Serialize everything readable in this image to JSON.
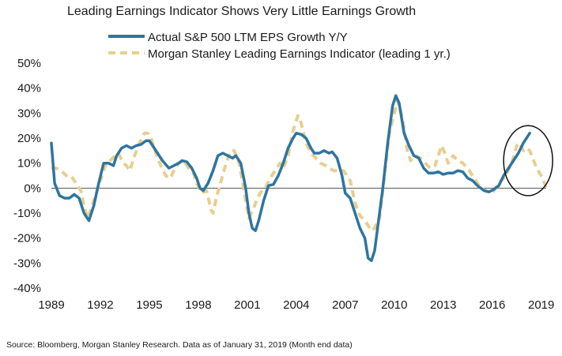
{
  "chart_data": {
    "type": "line",
    "title": "Leading Earnings Indicator Shows Very Little Earnings Growth",
    "xlabel": "",
    "ylabel": "",
    "x_ticks": [
      "1989",
      "1992",
      "1995",
      "1998",
      "2001",
      "2004",
      "2007",
      "2010",
      "2013",
      "2016",
      "2019"
    ],
    "y_ticks": [
      "50%",
      "40%",
      "30%",
      "20%",
      "10%",
      "0%",
      "-10%",
      "-20%",
      "-30%",
      "-40%"
    ],
    "xlim": [
      1989,
      2019.5
    ],
    "ylim": [
      -40,
      50
    ],
    "legend_position": "top",
    "grid": false,
    "zero_line": true,
    "highlight_ellipse": {
      "x_center": 2018.2,
      "y_center": 11,
      "x_radius": 1.5,
      "y_radius": 14
    },
    "series": [
      {
        "name": "Actual S&P 500 LTM EPS Growth Y/Y",
        "color": "#2e75a0",
        "style": "solid",
        "points": [
          [
            1989.0,
            18
          ],
          [
            1989.2,
            2
          ],
          [
            1989.5,
            -3
          ],
          [
            1989.8,
            -4
          ],
          [
            1990.1,
            -4
          ],
          [
            1990.4,
            -2.5
          ],
          [
            1990.7,
            -4
          ],
          [
            1991.0,
            -10
          ],
          [
            1991.3,
            -13
          ],
          [
            1991.6,
            -7
          ],
          [
            1991.9,
            2
          ],
          [
            1992.2,
            10
          ],
          [
            1992.5,
            10
          ],
          [
            1992.8,
            9
          ],
          [
            1993.0,
            13
          ],
          [
            1993.3,
            16
          ],
          [
            1993.6,
            17
          ],
          [
            1993.9,
            16
          ],
          [
            1994.2,
            17
          ],
          [
            1994.5,
            17.5
          ],
          [
            1994.8,
            19
          ],
          [
            1995.0,
            19
          ],
          [
            1995.2,
            17
          ],
          [
            1995.5,
            14
          ],
          [
            1995.8,
            11
          ],
          [
            1996.2,
            8
          ],
          [
            1996.5,
            9
          ],
          [
            1996.8,
            10
          ],
          [
            1997.0,
            11
          ],
          [
            1997.3,
            10.5
          ],
          [
            1997.6,
            8
          ],
          [
            1997.9,
            4
          ],
          [
            1998.1,
            0
          ],
          [
            1998.3,
            -1
          ],
          [
            1998.6,
            2
          ],
          [
            1998.9,
            7
          ],
          [
            1999.2,
            13
          ],
          [
            1999.5,
            14
          ],
          [
            1999.8,
            13
          ],
          [
            2000.1,
            12
          ],
          [
            2000.3,
            13
          ],
          [
            2000.6,
            10
          ],
          [
            2000.9,
            0
          ],
          [
            2001.1,
            -10
          ],
          [
            2001.3,
            -16
          ],
          [
            2001.5,
            -17
          ],
          [
            2001.7,
            -13
          ],
          [
            2002.0,
            -5
          ],
          [
            2002.3,
            1
          ],
          [
            2002.6,
            1.5
          ],
          [
            2002.9,
            5
          ],
          [
            2003.2,
            10
          ],
          [
            2003.5,
            16
          ],
          [
            2003.8,
            20
          ],
          [
            2004.0,
            22
          ],
          [
            2004.3,
            21.5
          ],
          [
            2004.6,
            20
          ],
          [
            2004.9,
            16
          ],
          [
            2005.1,
            14
          ],
          [
            2005.4,
            14
          ],
          [
            2005.7,
            15
          ],
          [
            2006.0,
            14
          ],
          [
            2006.2,
            14.5
          ],
          [
            2006.5,
            12
          ],
          [
            2006.8,
            5
          ],
          [
            2007.0,
            -2
          ],
          [
            2007.3,
            -4
          ],
          [
            2007.6,
            -10
          ],
          [
            2007.9,
            -16
          ],
          [
            2008.2,
            -20
          ],
          [
            2008.4,
            -28
          ],
          [
            2008.6,
            -29
          ],
          [
            2008.8,
            -25
          ],
          [
            2009.0,
            -15
          ],
          [
            2009.3,
            0
          ],
          [
            2009.6,
            18
          ],
          [
            2009.9,
            33
          ],
          [
            2010.1,
            37
          ],
          [
            2010.3,
            34
          ],
          [
            2010.6,
            22
          ],
          [
            2010.9,
            17
          ],
          [
            2011.2,
            13
          ],
          [
            2011.5,
            12
          ],
          [
            2011.8,
            8
          ],
          [
            2012.1,
            6
          ],
          [
            2012.4,
            6
          ],
          [
            2012.7,
            6.5
          ],
          [
            2013.0,
            5.5
          ],
          [
            2013.3,
            6
          ],
          [
            2013.6,
            6
          ],
          [
            2013.9,
            7
          ],
          [
            2014.2,
            6.5
          ],
          [
            2014.5,
            4
          ],
          [
            2014.8,
            3
          ],
          [
            2015.1,
            1
          ],
          [
            2015.5,
            -1
          ],
          [
            2015.8,
            -1.5
          ],
          [
            2016.1,
            -0.5
          ],
          [
            2016.4,
            1
          ],
          [
            2016.7,
            5
          ],
          [
            2017.0,
            8
          ],
          [
            2017.3,
            11
          ],
          [
            2017.6,
            14
          ],
          [
            2017.9,
            18
          ],
          [
            2018.1,
            20
          ],
          [
            2018.3,
            22
          ]
        ]
      },
      {
        "name": "Morgan Stanley Leading Earnings Indicator (leading 1 yr.)",
        "color": "#e6cf8f",
        "style": "dashed",
        "points": [
          [
            1989.0,
            8
          ],
          [
            1989.3,
            8
          ],
          [
            1989.6,
            7
          ],
          [
            1989.9,
            5
          ],
          [
            1990.2,
            5
          ],
          [
            1990.5,
            2
          ],
          [
            1990.8,
            -1
          ],
          [
            1991.0,
            -7
          ],
          [
            1991.2,
            -12
          ],
          [
            1991.4,
            -9
          ],
          [
            1991.7,
            -3
          ],
          [
            1992.0,
            3
          ],
          [
            1992.3,
            9
          ],
          [
            1992.6,
            11
          ],
          [
            1992.9,
            13
          ],
          [
            1993.1,
            14
          ],
          [
            1993.4,
            10
          ],
          [
            1993.6,
            9
          ],
          [
            1993.8,
            7
          ],
          [
            1994.1,
            13
          ],
          [
            1994.4,
            18
          ],
          [
            1994.7,
            22
          ],
          [
            1994.9,
            22
          ],
          [
            1995.1,
            20
          ],
          [
            1995.4,
            14
          ],
          [
            1995.7,
            9
          ],
          [
            1996.0,
            5
          ],
          [
            1996.3,
            4
          ],
          [
            1996.5,
            7
          ],
          [
            1996.8,
            10
          ],
          [
            1997.1,
            11
          ],
          [
            1997.4,
            8
          ],
          [
            1997.7,
            6
          ],
          [
            1997.9,
            2
          ],
          [
            1998.2,
            -2
          ],
          [
            1998.5,
            -1
          ],
          [
            1998.8,
            -9
          ],
          [
            1998.9,
            -10
          ],
          [
            1999.1,
            -4
          ],
          [
            1999.4,
            3
          ],
          [
            1999.7,
            10
          ],
          [
            2000.0,
            15
          ],
          [
            2000.2,
            15
          ],
          [
            2000.5,
            10
          ],
          [
            2000.7,
            3
          ],
          [
            2000.9,
            -5
          ],
          [
            2001.1,
            -12
          ],
          [
            2001.4,
            -8
          ],
          [
            2001.6,
            -4
          ],
          [
            2001.9,
            -1
          ],
          [
            2002.1,
            0
          ],
          [
            2002.4,
            4
          ],
          [
            2002.7,
            7
          ],
          [
            2003.0,
            10
          ],
          [
            2003.2,
            8
          ],
          [
            2003.5,
            13
          ],
          [
            2003.8,
            23
          ],
          [
            2004.1,
            29
          ],
          [
            2004.3,
            26
          ],
          [
            2004.6,
            18
          ],
          [
            2004.9,
            14
          ],
          [
            2005.2,
            12
          ],
          [
            2005.5,
            10
          ],
          [
            2005.8,
            9
          ],
          [
            2006.0,
            8
          ],
          [
            2006.3,
            7
          ],
          [
            2006.6,
            7
          ],
          [
            2006.9,
            7
          ],
          [
            2007.1,
            5
          ],
          [
            2007.3,
            3
          ],
          [
            2007.6,
            -6
          ],
          [
            2007.9,
            -11
          ],
          [
            2008.2,
            -13
          ],
          [
            2008.4,
            -15
          ],
          [
            2008.6,
            -17
          ],
          [
            2008.8,
            -16
          ],
          [
            2009.1,
            -12
          ],
          [
            2009.4,
            5
          ],
          [
            2009.7,
            22
          ],
          [
            2010.0,
            30
          ],
          [
            2010.2,
            35
          ],
          [
            2010.5,
            28
          ],
          [
            2010.8,
            15
          ],
          [
            2011.0,
            11
          ],
          [
            2011.3,
            13
          ],
          [
            2011.6,
            12
          ],
          [
            2011.9,
            10
          ],
          [
            2012.2,
            8
          ],
          [
            2012.5,
            9
          ],
          [
            2012.7,
            13
          ],
          [
            2012.9,
            17
          ],
          [
            2013.1,
            14
          ],
          [
            2013.3,
            10
          ],
          [
            2013.6,
            13
          ],
          [
            2013.9,
            11
          ],
          [
            2014.2,
            10
          ],
          [
            2014.5,
            8
          ],
          [
            2014.8,
            5
          ],
          [
            2015.1,
            2
          ],
          [
            2015.3,
            0
          ],
          [
            2015.6,
            -1
          ],
          [
            2015.9,
            -2
          ],
          [
            2016.1,
            -1
          ],
          [
            2016.4,
            2
          ],
          [
            2016.7,
            4
          ],
          [
            2016.9,
            6
          ],
          [
            2017.2,
            10
          ],
          [
            2017.5,
            17
          ],
          [
            2017.7,
            18
          ],
          [
            2017.9,
            15
          ],
          [
            2018.1,
            16
          ],
          [
            2018.3,
            15
          ],
          [
            2018.6,
            10
          ],
          [
            2018.9,
            6
          ],
          [
            2019.1,
            4
          ],
          [
            2019.3,
            0
          ]
        ]
      }
    ],
    "source_note": "Source: Bloomberg, Morgan Stanley Research. Data as of January 31, 2019 (Month end data)"
  }
}
